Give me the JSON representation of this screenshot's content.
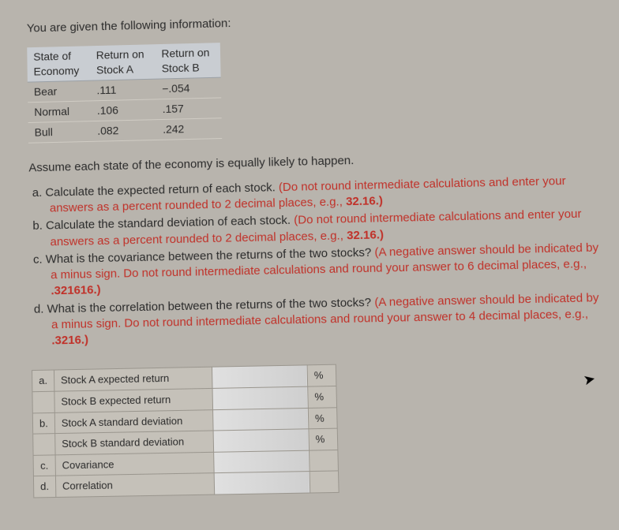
{
  "intro": "You are given the following information:",
  "data_table": {
    "headers": [
      "State of Economy",
      "Return on Stock A",
      "Return on Stock B"
    ],
    "rows": [
      [
        "Bear",
        ".111",
        "−.054"
      ],
      [
        "Normal",
        ".106",
        ".157"
      ],
      [
        "Bull",
        ".082",
        ".242"
      ]
    ]
  },
  "assume": "Assume each state of the economy is equally likely to happen.",
  "questions": {
    "a": {
      "label": "a. ",
      "black": "Calculate the expected return of each stock. ",
      "red": "(Do not round intermediate calculations and enter your answers as a percent rounded to 2 decimal places, e.g., ",
      "redbold": "32.16.)"
    },
    "b": {
      "label": "b. ",
      "black": "Calculate the standard deviation of each stock. ",
      "red": "(Do not round intermediate calculations and enter your answers as a percent rounded to 2 decimal places, e.g., ",
      "redbold": "32.16.)"
    },
    "c": {
      "label": "c. ",
      "black": "What is the covariance between the returns of the two stocks? ",
      "red": "(A negative answer should be indicated by a minus sign. Do not round intermediate calculations and round your answer to 6 decimal places, e.g., ",
      "redbold": ".321616.)"
    },
    "d": {
      "label": "d. ",
      "black": "What is the correlation between the returns of the two stocks? ",
      "red": "(A negative answer should be indicated by a minus sign. Do not round intermediate calculations and round your answer to 4 decimal places, e.g., ",
      "redbold": ".3216.)"
    }
  },
  "answer_rows": [
    {
      "lbl": "a.",
      "desc": "Stock A expected return",
      "unit": "%"
    },
    {
      "lbl": "",
      "desc": "Stock B expected return",
      "unit": "%"
    },
    {
      "lbl": "b.",
      "desc": "Stock A standard deviation",
      "unit": "%"
    },
    {
      "lbl": "",
      "desc": "Stock B standard deviation",
      "unit": "%"
    },
    {
      "lbl": "c.",
      "desc": "Covariance",
      "unit": ""
    },
    {
      "lbl": "d.",
      "desc": "Correlation",
      "unit": ""
    }
  ]
}
